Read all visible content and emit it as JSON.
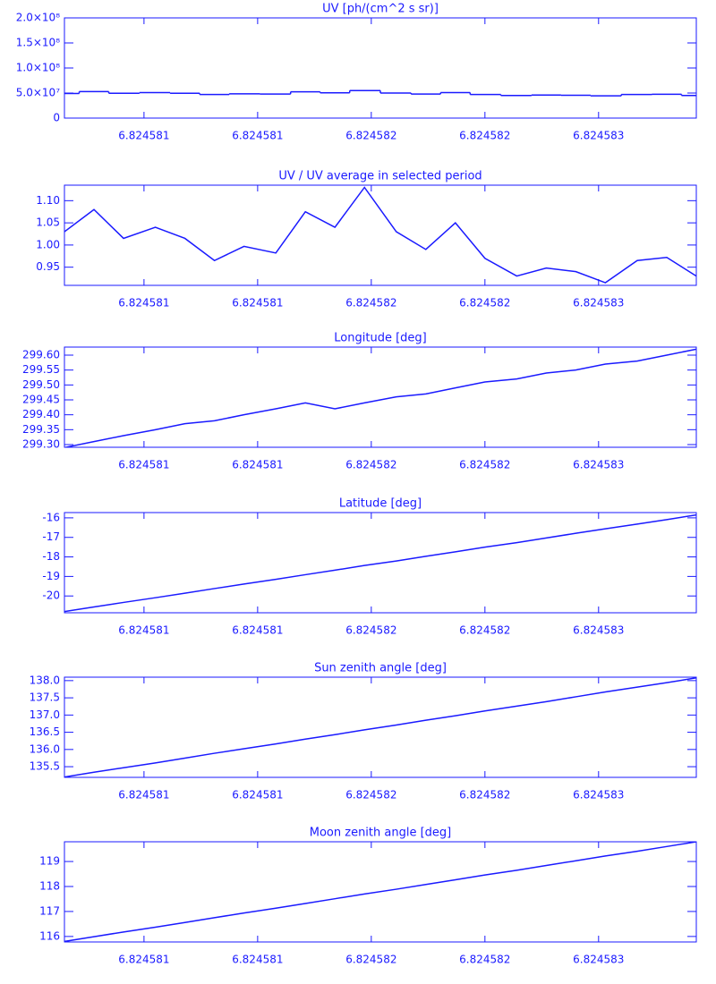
{
  "chart_data": [
    {
      "type": "step",
      "title": "UV [ph/(cm^2 s sr)]",
      "color": "#1a1aff",
      "x": [
        6.82458065,
        6.82458078,
        6.82458091,
        6.82458105,
        6.82458118,
        6.82458131,
        6.82458144,
        6.82458158,
        6.82458171,
        6.82458184,
        6.82458197,
        6.82458211,
        6.82458224,
        6.82458237,
        6.8245825,
        6.82458264,
        6.82458277,
        6.8245829,
        6.82458303,
        6.82458317,
        6.8245833,
        6.82458343
      ],
      "values": [
        49000000,
        53000000,
        49500000,
        51000000,
        49500000,
        47000000,
        48500000,
        48000000,
        52500000,
        50500000,
        55000000,
        50000000,
        48000000,
        51000000,
        47000000,
        45000000,
        46000000,
        45500000,
        44500000,
        47000000,
        47500000,
        45000000
      ],
      "xlim": [
        6.82458065,
        6.82458343
      ],
      "xticks": [
        {
          "value": 6.824581,
          "label": "6.824581"
        },
        {
          "value": 6.8245815,
          "label": "6.824581"
        },
        {
          "value": 6.824582,
          "label": "6.824582"
        },
        {
          "value": 6.8245825,
          "label": "6.824582"
        },
        {
          "value": 6.824583,
          "label": "6.824583"
        }
      ],
      "ylim": [
        0,
        200000000
      ],
      "yticks": [
        0,
        {
          "value": 50000000,
          "label": "5.0×10⁷"
        },
        {
          "value": 100000000,
          "label": "1.0×10⁸"
        },
        {
          "value": 150000000,
          "label": "1.5×10⁸"
        },
        {
          "value": 200000000,
          "label": "2.0×10⁸"
        }
      ]
    },
    {
      "type": "line",
      "title": "UV / UV average in selected period",
      "color": "#1a1aff",
      "x": [
        6.82458065,
        6.82458078,
        6.82458091,
        6.82458105,
        6.82458118,
        6.82458131,
        6.82458144,
        6.82458158,
        6.82458171,
        6.82458184,
        6.82458197,
        6.82458211,
        6.82458224,
        6.82458237,
        6.8245825,
        6.82458264,
        6.82458277,
        6.8245829,
        6.82458303,
        6.82458317,
        6.8245833,
        6.82458343
      ],
      "values": [
        1.03,
        1.08,
        1.015,
        1.04,
        1.015,
        0.965,
        0.997,
        0.982,
        1.075,
        1.04,
        1.13,
        1.03,
        0.99,
        1.05,
        0.97,
        0.93,
        0.948,
        0.94,
        0.915,
        0.965,
        0.972,
        0.93
      ],
      "xlim": [
        6.82458065,
        6.82458343
      ],
      "xticks": [
        {
          "value": 6.824581,
          "label": "6.824581"
        },
        {
          "value": 6.8245815,
          "label": "6.824581"
        },
        {
          "value": 6.824582,
          "label": "6.824582"
        },
        {
          "value": 6.8245825,
          "label": "6.824582"
        },
        {
          "value": 6.824583,
          "label": "6.824583"
        }
      ],
      "ylim": [
        0.909,
        1.135
      ],
      "yticks": [
        0.95,
        {
          "value": 1.0,
          "label": "1.00"
        },
        1.05,
        {
          "value": 1.1,
          "label": "1.10"
        }
      ]
    },
    {
      "type": "line",
      "title": "Longitude [deg]",
      "color": "#1a1aff",
      "x": [
        6.82458065,
        6.82458078,
        6.82458091,
        6.82458105,
        6.82458118,
        6.82458131,
        6.82458144,
        6.82458158,
        6.82458171,
        6.82458184,
        6.82458197,
        6.82458211,
        6.82458224,
        6.82458237,
        6.8245825,
        6.82458264,
        6.82458277,
        6.8245829,
        6.82458303,
        6.82458317,
        6.8245833,
        6.82458343
      ],
      "values": [
        299.29,
        299.31,
        299.33,
        299.35,
        299.37,
        299.38,
        299.4,
        299.42,
        299.44,
        299.42,
        299.44,
        299.46,
        299.47,
        299.49,
        299.51,
        299.52,
        299.54,
        299.55,
        299.57,
        299.58,
        299.6,
        299.62
      ],
      "xlim": [
        6.82458065,
        6.82458343
      ],
      "xticks": [
        {
          "value": 6.824581,
          "label": "6.824581"
        },
        {
          "value": 6.8245815,
          "label": "6.824581"
        },
        {
          "value": 6.824582,
          "label": "6.824582"
        },
        {
          "value": 6.8245825,
          "label": "6.824582"
        },
        {
          "value": 6.824583,
          "label": "6.824583"
        }
      ],
      "ylim": [
        299.291,
        299.627
      ],
      "yticks": [
        {
          "value": 299.3,
          "label": "299.30"
        },
        299.35,
        {
          "value": 299.4,
          "label": "299.40"
        },
        299.45,
        {
          "value": 299.5,
          "label": "299.50"
        },
        299.55,
        {
          "value": 299.6,
          "label": "299.60"
        }
      ]
    },
    {
      "type": "line",
      "title": "Latitude [deg]",
      "color": "#1a1aff",
      "x": [
        6.82458065,
        6.82458078,
        6.82458091,
        6.82458105,
        6.82458118,
        6.82458131,
        6.82458144,
        6.82458158,
        6.82458171,
        6.82458184,
        6.82458197,
        6.82458211,
        6.82458224,
        6.82458237,
        6.8245825,
        6.82458264,
        6.82458277,
        6.8245829,
        6.82458303,
        6.82458317,
        6.8245833,
        6.82458343
      ],
      "values": [
        -20.8,
        -20.56,
        -20.33,
        -20.09,
        -19.86,
        -19.62,
        -19.39,
        -19.15,
        -18.91,
        -18.68,
        -18.44,
        -18.21,
        -17.97,
        -17.74,
        -17.5,
        -17.27,
        -17.03,
        -16.79,
        -16.56,
        -16.32,
        -16.09,
        -15.85
      ],
      "xlim": [
        6.82458065,
        6.82458343
      ],
      "xticks": [
        {
          "value": 6.824581,
          "label": "6.824581"
        },
        {
          "value": 6.8245815,
          "label": "6.824581"
        },
        {
          "value": 6.824582,
          "label": "6.824582"
        },
        {
          "value": 6.8245825,
          "label": "6.824582"
        },
        {
          "value": 6.824583,
          "label": "6.824583"
        }
      ],
      "ylim": [
        -20.86,
        -15.73
      ],
      "yticks": [
        -20,
        -19,
        -18,
        -17,
        -16
      ]
    },
    {
      "type": "line",
      "title": "Sun zenith angle [deg]",
      "color": "#1a1aff",
      "x": [
        6.82458065,
        6.82458078,
        6.82458091,
        6.82458105,
        6.82458118,
        6.82458131,
        6.82458144,
        6.82458158,
        6.82458171,
        6.82458184,
        6.82458197,
        6.82458211,
        6.82458224,
        6.82458237,
        6.8245825,
        6.82458264,
        6.82458277,
        6.8245829,
        6.82458303,
        6.82458317,
        6.8245833,
        6.82458343
      ],
      "values": [
        135.2,
        135.34,
        135.47,
        135.61,
        135.75,
        135.89,
        136.02,
        136.16,
        136.3,
        136.43,
        136.57,
        136.71,
        136.85,
        136.98,
        137.12,
        137.26,
        137.39,
        137.53,
        137.67,
        137.81,
        137.94,
        138.08
      ],
      "xlim": [
        6.82458065,
        6.82458343
      ],
      "xticks": [
        {
          "value": 6.824581,
          "label": "6.824581"
        },
        {
          "value": 6.8245815,
          "label": "6.824581"
        },
        {
          "value": 6.824582,
          "label": "6.824582"
        },
        {
          "value": 6.8245825,
          "label": "6.824582"
        },
        {
          "value": 6.824583,
          "label": "6.824583"
        }
      ],
      "ylim": [
        135.19,
        138.1
      ],
      "yticks": [
        135.5,
        {
          "value": 136,
          "label": "136.0"
        },
        136.5,
        {
          "value": 137,
          "label": "137.0"
        },
        137.5,
        {
          "value": 138,
          "label": "138.0"
        }
      ]
    },
    {
      "type": "line",
      "title": "Moon zenith angle [deg]",
      "color": "#1a1aff",
      "x": [
        6.82458065,
        6.82458078,
        6.82458091,
        6.82458105,
        6.82458118,
        6.82458131,
        6.82458144,
        6.82458158,
        6.82458171,
        6.82458184,
        6.82458197,
        6.82458211,
        6.82458224,
        6.82458237,
        6.8245825,
        6.82458264,
        6.82458277,
        6.8245829,
        6.82458303,
        6.82458317,
        6.8245833,
        6.82458343
      ],
      "values": [
        115.8,
        115.99,
        116.18,
        116.37,
        116.56,
        116.75,
        116.94,
        117.13,
        117.32,
        117.51,
        117.7,
        117.89,
        118.08,
        118.27,
        118.46,
        118.65,
        118.84,
        119.03,
        119.22,
        119.41,
        119.6,
        119.79
      ],
      "xlim": [
        6.82458065,
        6.82458343
      ],
      "xticks": [
        {
          "value": 6.824581,
          "label": "6.824581"
        },
        {
          "value": 6.8245815,
          "label": "6.824581"
        },
        {
          "value": 6.824582,
          "label": "6.824582"
        },
        {
          "value": 6.8245825,
          "label": "6.824582"
        },
        {
          "value": 6.824583,
          "label": "6.824583"
        }
      ],
      "ylim": [
        115.78,
        119.79
      ],
      "yticks": [
        116,
        117,
        118,
        119
      ]
    }
  ]
}
